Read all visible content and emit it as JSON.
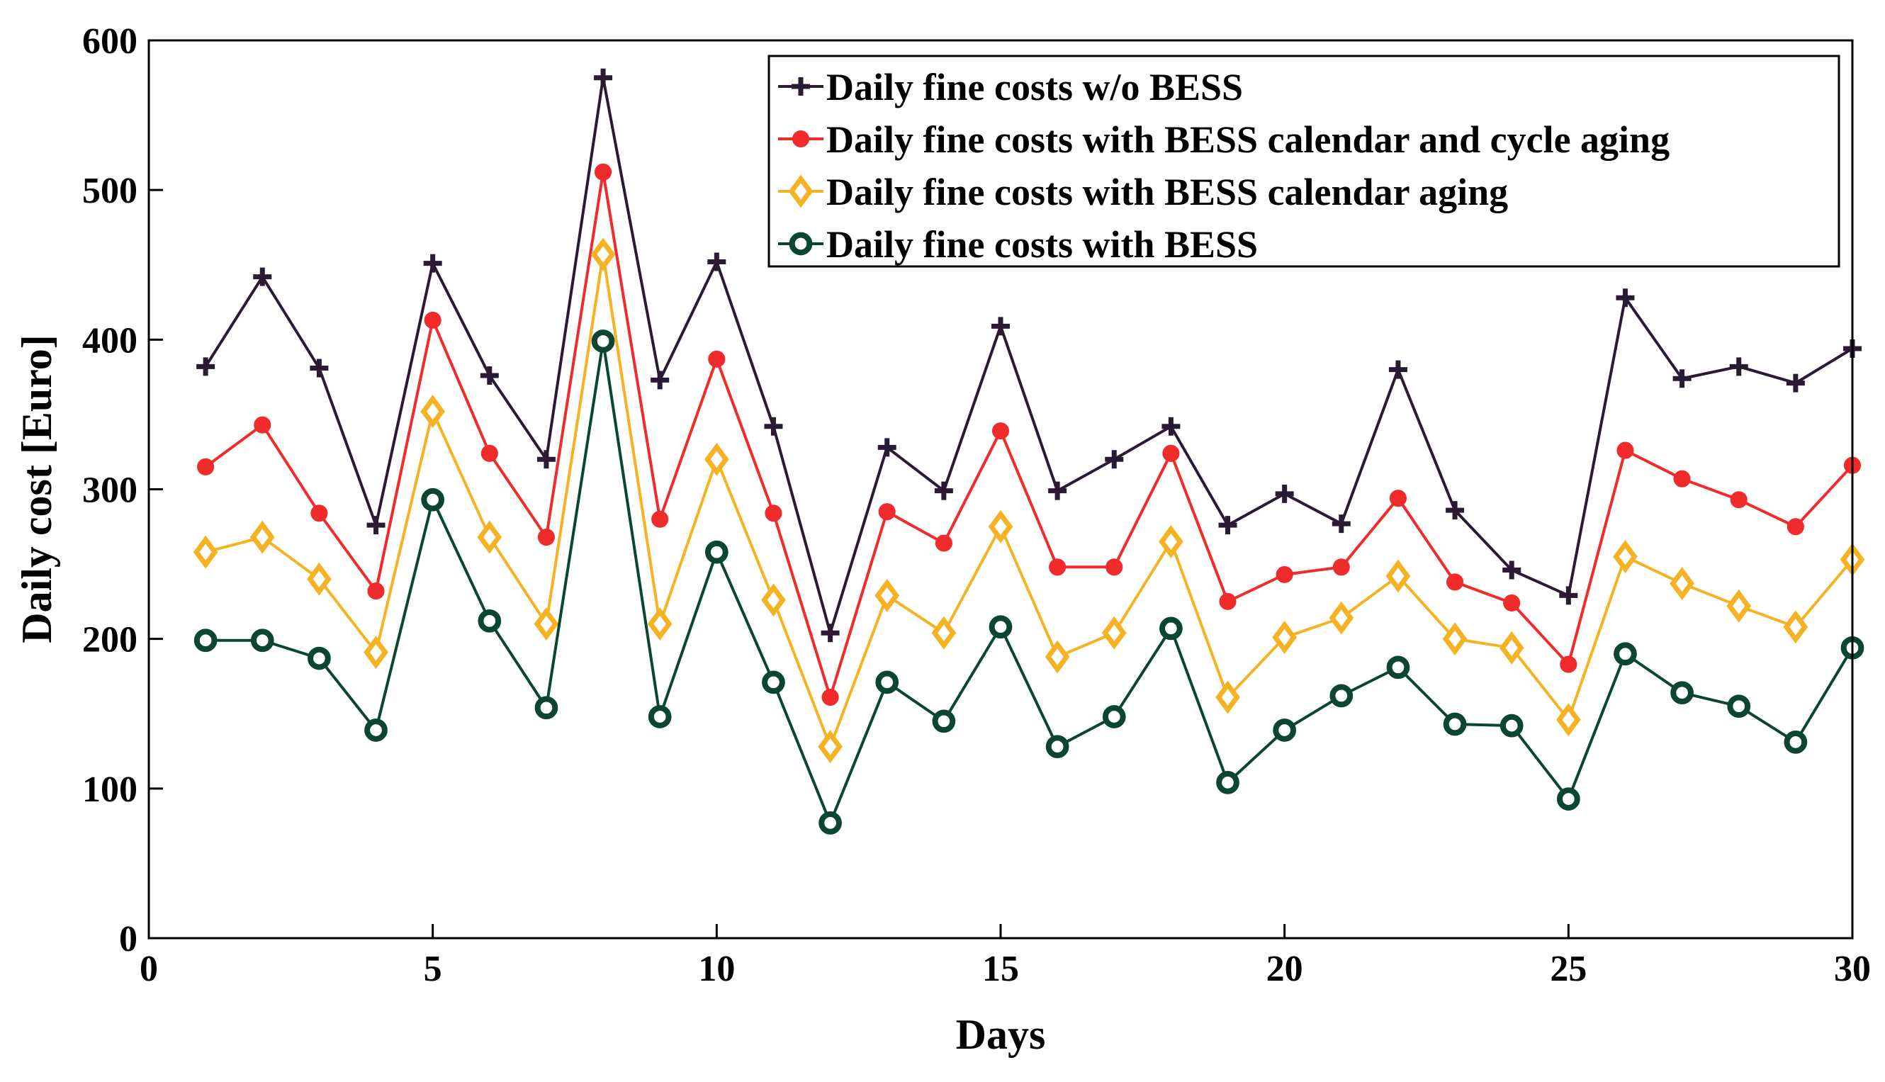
{
  "chart_data": {
    "type": "line",
    "title": "",
    "xlabel": "Days",
    "ylabel": "Daily cost [Euro]",
    "xlim": [
      0,
      30
    ],
    "ylim": [
      0,
      600
    ],
    "xticks": [
      0,
      5,
      10,
      15,
      20,
      25,
      30
    ],
    "yticks": [
      0,
      100,
      200,
      300,
      400,
      500,
      600
    ],
    "grid": false,
    "legend_position": "top-right",
    "x": [
      1,
      2,
      3,
      4,
      5,
      6,
      7,
      8,
      9,
      10,
      11,
      12,
      13,
      14,
      15,
      16,
      17,
      18,
      19,
      20,
      21,
      22,
      23,
      24,
      25,
      26,
      27,
      28,
      29,
      30
    ],
    "series": [
      {
        "name": "Daily fine costs w/o BESS",
        "color": "#2b1a33",
        "marker": "plus",
        "values": [
          382,
          442,
          381,
          276,
          451,
          376,
          320,
          575,
          373,
          452,
          342,
          204,
          328,
          299,
          409,
          299,
          320,
          342,
          276,
          297,
          277,
          380,
          286,
          246,
          229,
          428,
          374,
          382,
          371,
          394
        ]
      },
      {
        "name": "Daily fine costs with BESS calendar and cycle aging",
        "color": "#f02b2b",
        "marker": "filled-circle",
        "values": [
          315,
          343,
          284,
          232,
          413,
          324,
          268,
          512,
          280,
          387,
          284,
          161,
          285,
          264,
          339,
          248,
          248,
          324,
          225,
          243,
          248,
          294,
          238,
          224,
          183,
          326,
          307,
          293,
          275,
          316
        ]
      },
      {
        "name": "Daily fine costs with BESS calendar aging",
        "color": "#f5b324",
        "marker": "diamond",
        "values": [
          258,
          268,
          240,
          191,
          352,
          268,
          210,
          457,
          210,
          320,
          226,
          128,
          229,
          204,
          275,
          188,
          204,
          265,
          161,
          201,
          214,
          242,
          200,
          194,
          146,
          255,
          237,
          222,
          208,
          253
        ]
      },
      {
        "name": "Daily fine costs with BESS",
        "color": "#0a4630",
        "marker": "ring",
        "values": [
          199,
          199,
          187,
          139,
          293,
          212,
          154,
          399,
          148,
          258,
          171,
          77,
          171,
          145,
          208,
          128,
          148,
          207,
          104,
          139,
          162,
          181,
          143,
          142,
          93,
          190,
          164,
          155,
          131,
          194
        ]
      }
    ]
  }
}
